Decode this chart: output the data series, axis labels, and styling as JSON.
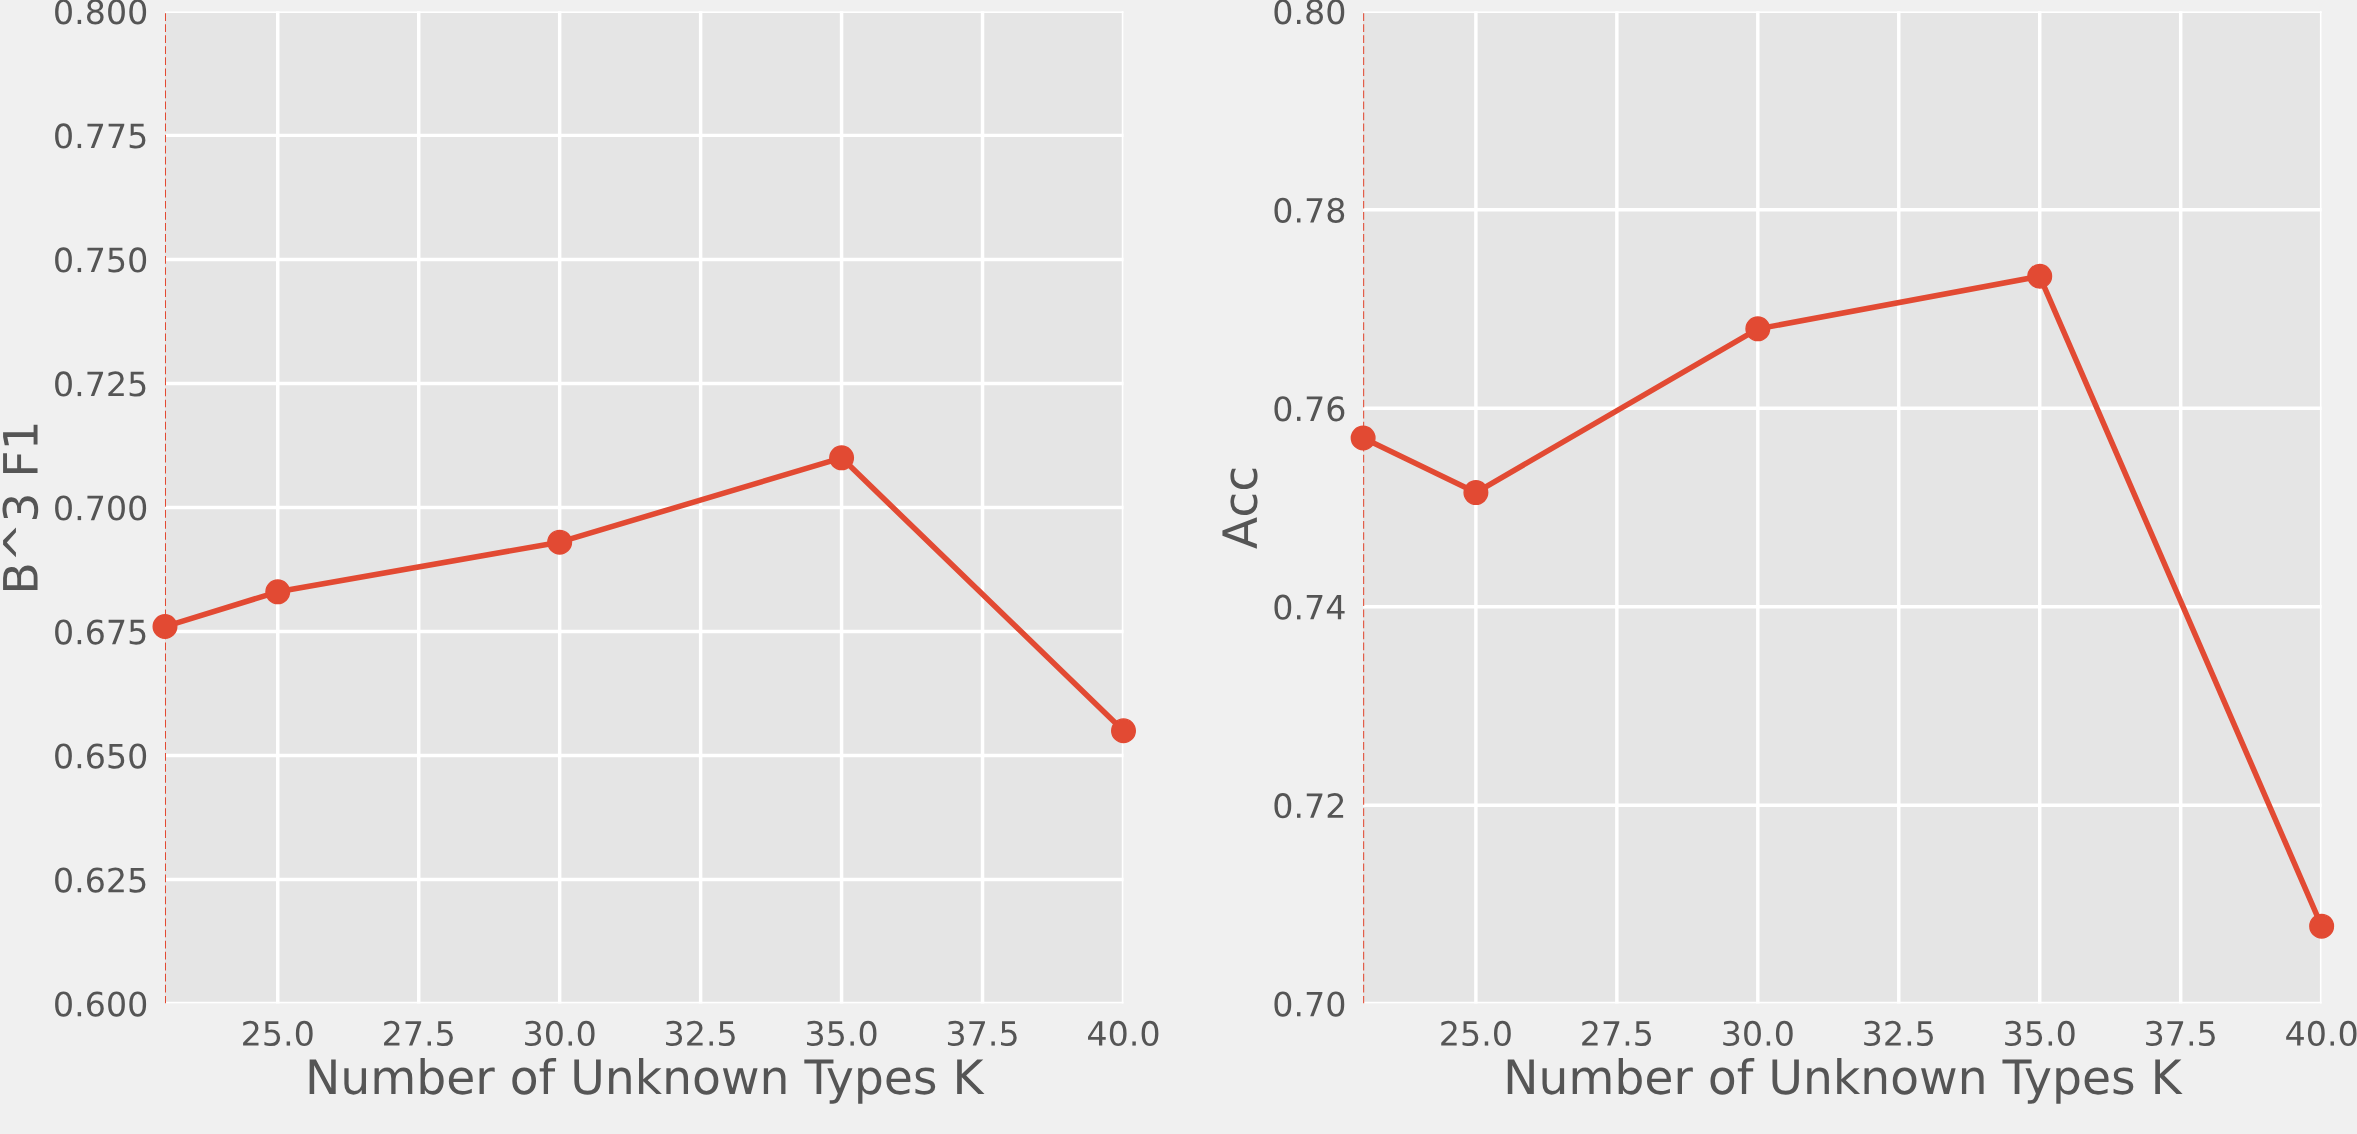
{
  "chart_data": [
    {
      "type": "line",
      "xlabel": "Number of Unknown Types K",
      "ylabel": "B^3 F1",
      "x": [
        23,
        25,
        30,
        35,
        40
      ],
      "series": [
        {
          "color": "#e24a33",
          "values": [
            0.676,
            0.683,
            0.693,
            0.71,
            0.655
          ]
        }
      ],
      "xlim": [
        23,
        40
      ],
      "ylim": [
        0.6,
        0.8
      ],
      "xticks": [
        {
          "value": 25,
          "label": "25.0"
        },
        {
          "value": 27.5,
          "label": "27.5"
        },
        {
          "value": 30,
          "label": "30.0"
        },
        {
          "value": 32.5,
          "label": "32.5"
        },
        {
          "value": 35,
          "label": "35.0"
        },
        {
          "value": 37.5,
          "label": "37.5"
        },
        {
          "value": 40,
          "label": "40.0"
        }
      ],
      "yticks": [
        {
          "value": 0.6,
          "label": "0.600"
        },
        {
          "value": 0.625,
          "label": "0.625"
        },
        {
          "value": 0.65,
          "label": "0.650"
        },
        {
          "value": 0.675,
          "label": "0.675"
        },
        {
          "value": 0.7,
          "label": "0.700"
        },
        {
          "value": 0.725,
          "label": "0.725"
        },
        {
          "value": 0.75,
          "label": "0.750"
        },
        {
          "value": 0.775,
          "label": "0.775"
        },
        {
          "value": 0.8,
          "label": "0.800"
        }
      ],
      "ref_lines": [
        {
          "axis": "x",
          "value": 23,
          "color": "#e24a33",
          "line_style": "dashed"
        }
      ],
      "grid": true,
      "marker": "circle",
      "line_style": "solid"
    },
    {
      "type": "line",
      "xlabel": "Number of Unknown Types K",
      "ylabel": "Acc",
      "x": [
        23,
        25,
        30,
        35,
        40
      ],
      "series": [
        {
          "color": "#e24a33",
          "values": [
            0.757,
            0.7515,
            0.768,
            0.7733,
            0.7078
          ]
        }
      ],
      "xlim": [
        23,
        40
      ],
      "ylim": [
        0.7,
        0.8
      ],
      "xticks": [
        {
          "value": 25,
          "label": "25.0"
        },
        {
          "value": 27.5,
          "label": "27.5"
        },
        {
          "value": 30,
          "label": "30.0"
        },
        {
          "value": 32.5,
          "label": "32.5"
        },
        {
          "value": 35,
          "label": "35.0"
        },
        {
          "value": 37.5,
          "label": "37.5"
        },
        {
          "value": 40,
          "label": "40.0"
        }
      ],
      "yticks": [
        {
          "value": 0.7,
          "label": "0.70"
        },
        {
          "value": 0.72,
          "label": "0.72"
        },
        {
          "value": 0.74,
          "label": "0.74"
        },
        {
          "value": 0.76,
          "label": "0.76"
        },
        {
          "value": 0.78,
          "label": "0.78"
        },
        {
          "value": 0.8,
          "label": "0.80"
        }
      ],
      "ref_lines": [
        {
          "axis": "x",
          "value": 23,
          "color": "#e24a33",
          "line_style": "dashed"
        }
      ],
      "grid": true,
      "marker": "circle",
      "line_style": "solid"
    }
  ]
}
